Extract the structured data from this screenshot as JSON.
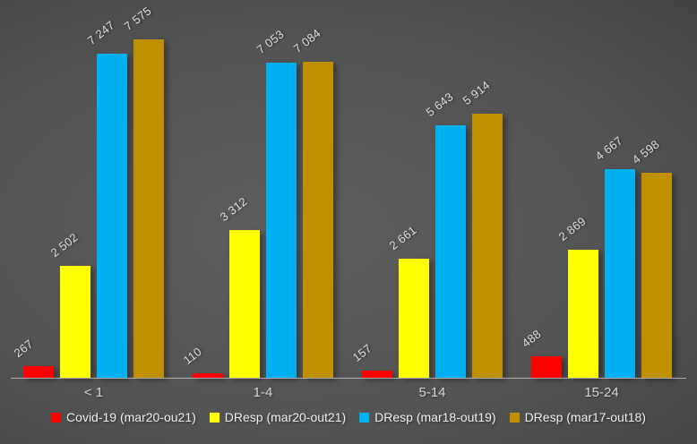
{
  "chart_data": {
    "type": "bar",
    "title": "",
    "xlabel": "",
    "ylabel": "",
    "categories": [
      "< 1",
      "1-4",
      "5-14",
      "15-24"
    ],
    "series": [
      {
        "name": "Covid-19 (mar20-ou21)",
        "color": "#ff0000",
        "values": [
          267,
          110,
          157,
          488
        ],
        "labels": [
          "267",
          "110",
          "157",
          "488"
        ]
      },
      {
        "name": "DResp (mar20-out21)",
        "color": "#ffff00",
        "values": [
          2502,
          3312,
          2661,
          2869
        ],
        "labels": [
          "2 502",
          "3 312",
          "2 661",
          "2 869"
        ]
      },
      {
        "name": "DResp (mar18-out19)",
        "color": "#00b0f0",
        "values": [
          7247,
          7053,
          5643,
          4667
        ],
        "labels": [
          "7 247",
          "7 053",
          "5 643",
          "4 667"
        ]
      },
      {
        "name": "DResp (mar17-out18)",
        "color": "#c09000",
        "values": [
          7575,
          7084,
          5914,
          4598
        ],
        "labels": [
          "7 575",
          "7 084",
          "5 914",
          "4 598"
        ]
      }
    ],
    "ylim": [
      0,
      7575
    ],
    "grid": false,
    "legend_position": "bottom",
    "data_label_rotation_deg": -38
  },
  "colors": {
    "background_center": "#5e5e5e",
    "background_edge": "#2a2a2a",
    "axis_line": "#c9c9c9",
    "data_label": "#e2e2e2",
    "category_label": "#d9d9d9",
    "legend_text": "#f2f2f2"
  }
}
